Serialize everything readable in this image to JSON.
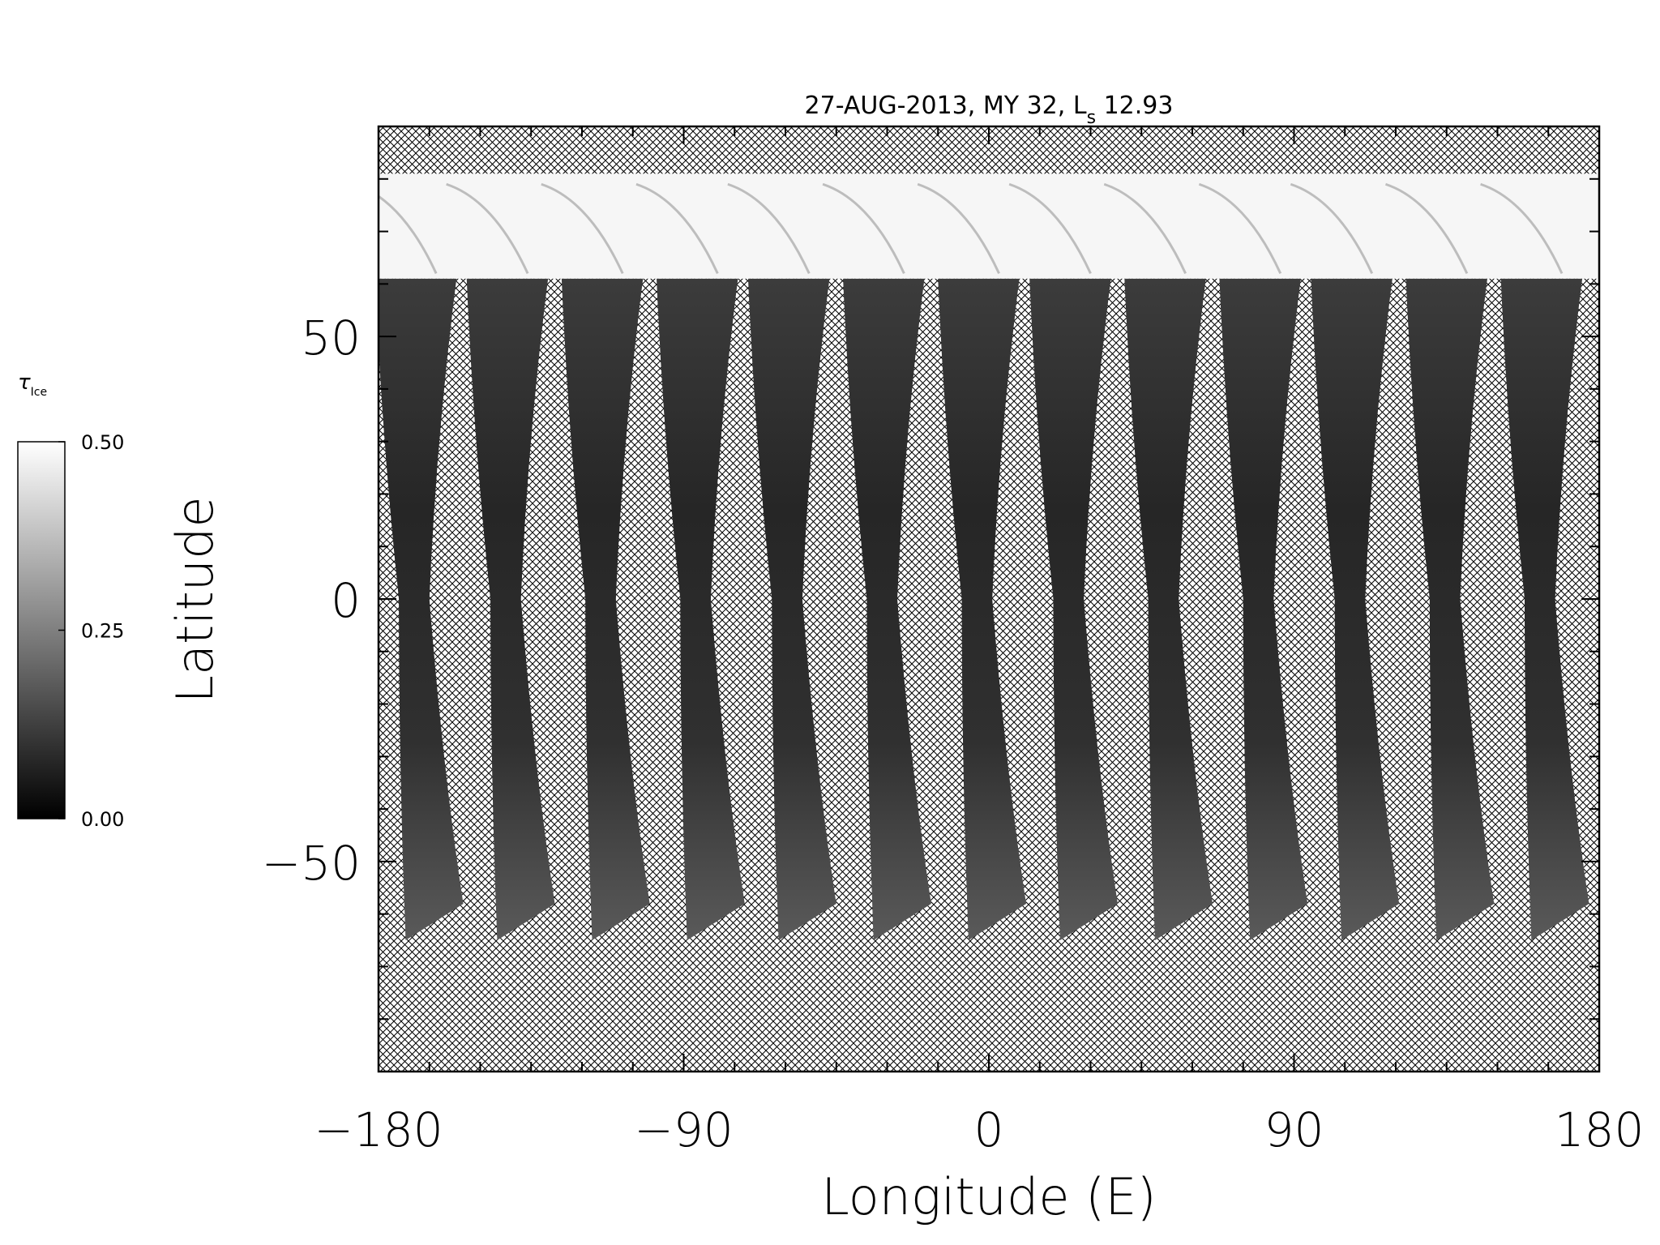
{
  "chart_data": {
    "type": "heatmap",
    "title": "27-AUG-2013, MY 32,  L",
    "title_subscript": "s",
    "title_suffix": " 12.93",
    "xlabel": "Longitude (E)",
    "ylabel": "Latitude",
    "xlim": [
      -180,
      180
    ],
    "ylim": [
      -90,
      90
    ],
    "x_ticks": [
      -180,
      -90,
      0,
      90,
      180
    ],
    "x_tick_labels": [
      "−180",
      "−90",
      "0",
      "90",
      "180"
    ],
    "y_ticks": [
      -50,
      0,
      50
    ],
    "y_tick_labels": [
      "−50",
      "0",
      "50"
    ],
    "no_data_fill": "crosshatch",
    "colorbar": {
      "label": "τ",
      "label_subscript": "Ice",
      "range": [
        0.0,
        0.5
      ],
      "ticks": [
        0.0,
        0.25,
        0.5
      ],
      "tick_labels": [
        "0.00",
        "0.25",
        "0.50"
      ],
      "colormap": "grayscale",
      "low_color": "#000000",
      "high_color": "#ffffff"
    },
    "orbit_swaths": {
      "count": 13,
      "start_longitudes_at_equator": [
        -175,
        -148,
        -120,
        -92,
        -65,
        -37,
        -9,
        18,
        46,
        74,
        101,
        129,
        157
      ],
      "lat_north": 61,
      "lat_south": -65,
      "longitude_drift_north_to_south": 15,
      "typical_value": 0.08
    },
    "polar_cap": {
      "lat_top": 81,
      "lat_bottom": 61,
      "value": 0.5
    }
  }
}
